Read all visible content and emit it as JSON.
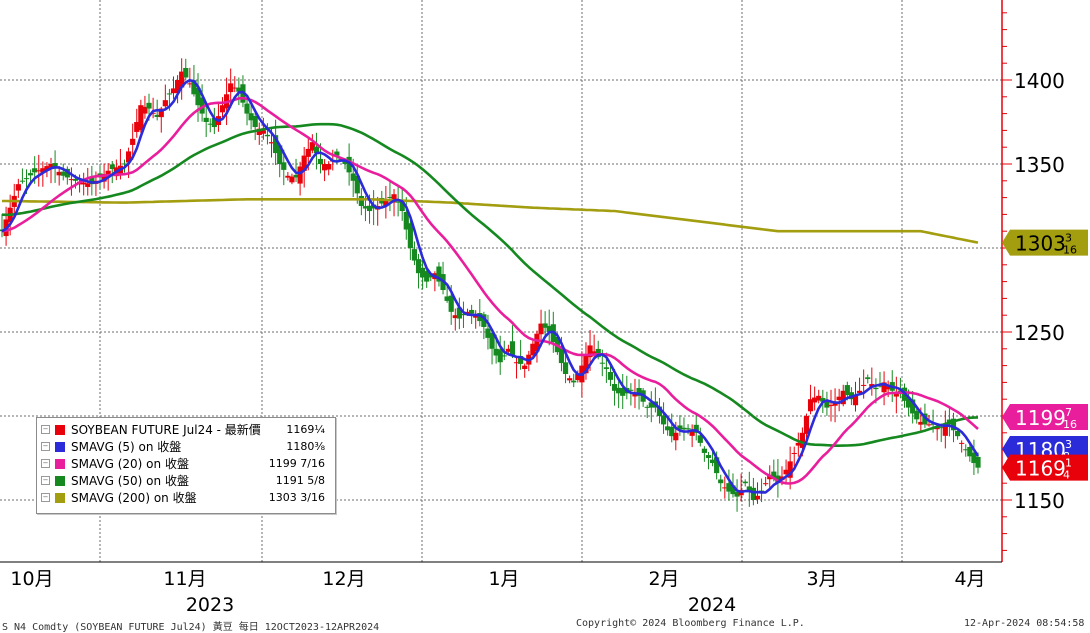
{
  "chart_data": {
    "type": "candlestick",
    "y_range": [
      1110,
      1445
    ],
    "y_ticks": [
      1150,
      1250,
      1350,
      1400
    ],
    "y_tick_labels": [
      "1150",
      "1250",
      "1350",
      "1400"
    ],
    "x_month_labels": [
      "10月",
      "11月",
      "12月",
      "1月",
      "2月",
      "3月",
      "4月"
    ],
    "x_year_labels": [
      "2023",
      "2024"
    ],
    "series": [
      {
        "name": "SOYBEAN FUTURE Jul24 - 最新價",
        "color": "#e8000b",
        "value_label": "1169¼"
      },
      {
        "name": "SMAVG (5)  on 收盤",
        "color": "#2b2bd9",
        "value_label": "1180⅜"
      },
      {
        "name": "SMAVG (20)  on 收盤",
        "color": "#e91e9c",
        "value_label": "1199 7/16"
      },
      {
        "name": "SMAVG (50)  on 收盤",
        "color": "#15891f",
        "value_label": "1191 ⅝"
      },
      {
        "name": "SMAVG (200)  on 收盤",
        "color": "#a39d10",
        "value_label": "1303 3/16"
      }
    ],
    "close_anchors": [
      [
        0,
        1310
      ],
      [
        4,
        1338
      ],
      [
        8,
        1345
      ],
      [
        12,
        1350
      ],
      [
        15,
        1343
      ],
      [
        18,
        1340
      ],
      [
        22,
        1338
      ],
      [
        26,
        1346
      ],
      [
        30,
        1350
      ],
      [
        32,
        1365
      ],
      [
        34,
        1385
      ],
      [
        36,
        1383
      ],
      [
        38,
        1378
      ],
      [
        40,
        1388
      ],
      [
        42,
        1395
      ],
      [
        44,
        1405
      ],
      [
        46,
        1398
      ],
      [
        48,
        1385
      ],
      [
        50,
        1375
      ],
      [
        52,
        1372
      ],
      [
        54,
        1385
      ],
      [
        56,
        1398
      ],
      [
        58,
        1393
      ],
      [
        60,
        1380
      ],
      [
        62,
        1372
      ],
      [
        64,
        1370
      ],
      [
        66,
        1363
      ],
      [
        68,
        1350
      ],
      [
        70,
        1343
      ],
      [
        72,
        1342
      ],
      [
        74,
        1355
      ],
      [
        76,
        1363
      ],
      [
        78,
        1350
      ],
      [
        80,
        1350
      ],
      [
        82,
        1355
      ],
      [
        84,
        1350
      ],
      [
        86,
        1340
      ],
      [
        88,
        1325
      ],
      [
        90,
        1322
      ],
      [
        92,
        1325
      ],
      [
        94,
        1328
      ],
      [
        96,
        1332
      ],
      [
        98,
        1322
      ],
      [
        100,
        1300
      ],
      [
        102,
        1285
      ],
      [
        104,
        1280
      ],
      [
        106,
        1285
      ],
      [
        108,
        1275
      ],
      [
        110,
        1262
      ],
      [
        112,
        1258
      ],
      [
        114,
        1262
      ],
      [
        116,
        1260
      ],
      [
        118,
        1253
      ],
      [
        120,
        1240
      ],
      [
        122,
        1232
      ],
      [
        124,
        1240
      ],
      [
        126,
        1232
      ],
      [
        128,
        1230
      ],
      [
        130,
        1243
      ],
      [
        132,
        1255
      ],
      [
        134,
        1250
      ],
      [
        136,
        1238
      ],
      [
        138,
        1225
      ],
      [
        140,
        1220
      ],
      [
        142,
        1230
      ],
      [
        144,
        1242
      ],
      [
        146,
        1235
      ],
      [
        148,
        1228
      ],
      [
        150,
        1215
      ],
      [
        152,
        1212
      ],
      [
        154,
        1215
      ],
      [
        156,
        1212
      ],
      [
        158,
        1205
      ],
      [
        160,
        1205
      ],
      [
        162,
        1195
      ],
      [
        164,
        1188
      ],
      [
        166,
        1192
      ],
      [
        168,
        1192
      ],
      [
        170,
        1190
      ],
      [
        172,
        1178
      ],
      [
        174,
        1172
      ],
      [
        176,
        1160
      ],
      [
        178,
        1155
      ],
      [
        180,
        1152
      ],
      [
        182,
        1160
      ],
      [
        184,
        1150
      ],
      [
        186,
        1155
      ],
      [
        188,
        1165
      ],
      [
        190,
        1160
      ],
      [
        192,
        1168
      ],
      [
        194,
        1178
      ],
      [
        196,
        1190
      ],
      [
        198,
        1210
      ],
      [
        200,
        1212
      ],
      [
        202,
        1205
      ],
      [
        204,
        1208
      ],
      [
        206,
        1215
      ],
      [
        208,
        1210
      ],
      [
        210,
        1215
      ],
      [
        212,
        1222
      ],
      [
        214,
        1216
      ],
      [
        216,
        1220
      ],
      [
        218,
        1215
      ],
      [
        220,
        1213
      ],
      [
        222,
        1205
      ],
      [
        224,
        1198
      ],
      [
        226,
        1195
      ],
      [
        228,
        1195
      ],
      [
        230,
        1193
      ],
      [
        232,
        1195
      ],
      [
        234,
        1188
      ],
      [
        236,
        1180
      ],
      [
        238,
        1172
      ],
      [
        239,
        1169.25
      ]
    ],
    "sma200_anchors": [
      [
        0,
        1328
      ],
      [
        30,
        1327
      ],
      [
        60,
        1329
      ],
      [
        90,
        1329
      ],
      [
        110,
        1327
      ],
      [
        130,
        1324
      ],
      [
        150,
        1322
      ],
      [
        170,
        1316
      ],
      [
        190,
        1310
      ],
      [
        210,
        1310
      ],
      [
        225,
        1310
      ],
      [
        239,
        1303.19
      ]
    ],
    "last_values": {
      "price": 1169.25,
      "sma5": 1180.38,
      "sma20": 1199.44,
      "sma50": 1191.63,
      "sma200": 1303.19
    }
  },
  "tags": [
    {
      "text": "1303",
      "frac_num": "3",
      "frac_den": "16",
      "bg": "#a39d10",
      "fg": "#000000",
      "value": 1303.19
    },
    {
      "text": "1199",
      "frac_num": "7",
      "frac_den": "16",
      "bg": "#e91e9c",
      "fg": "#ffffff",
      "value": 1199.44
    },
    {
      "text": "1180",
      "frac_num": "3",
      "frac_den": "8",
      "bg": "#2b2bd9",
      "fg": "#ffffff",
      "value": 1180.38
    },
    {
      "text": "1169",
      "frac_num": "1",
      "frac_den": "4",
      "bg": "#e8000b",
      "fg": "#ffffff",
      "value": 1169.25
    }
  ],
  "colors": {
    "up": "#e8000b",
    "down": "#15891f",
    "axis": "#e8000b",
    "grid": "#6e6e6e"
  },
  "legend": {
    "rows": [
      {
        "label": "SOYBEAN FUTURE Jul24 - 最新價",
        "value": "1169¼",
        "color": "#e8000b"
      },
      {
        "label": "SMAVG (5)  on 收盤",
        "value": "1180⅜",
        "color": "#2b2bd9"
      },
      {
        "label": "SMAVG (20)  on 收盤",
        "value": "1199 7/16",
        "color": "#e91e9c"
      },
      {
        "label": "SMAVG (50)  on 收盤",
        "value": "1191 5/8",
        "color": "#15891f"
      },
      {
        "label": "SMAVG (200)  on 收盤",
        "value": "1303 3/16",
        "color": "#a39d10"
      }
    ]
  },
  "footer": {
    "left": "S N4 Comdty (SOYBEAN FUTURE    Jul24) 黃豆  每日 12OCT2023-12APR2024",
    "center": "Copyright© 2024 Bloomberg Finance L.P.",
    "right": "12-Apr-2024 08:54:58"
  }
}
